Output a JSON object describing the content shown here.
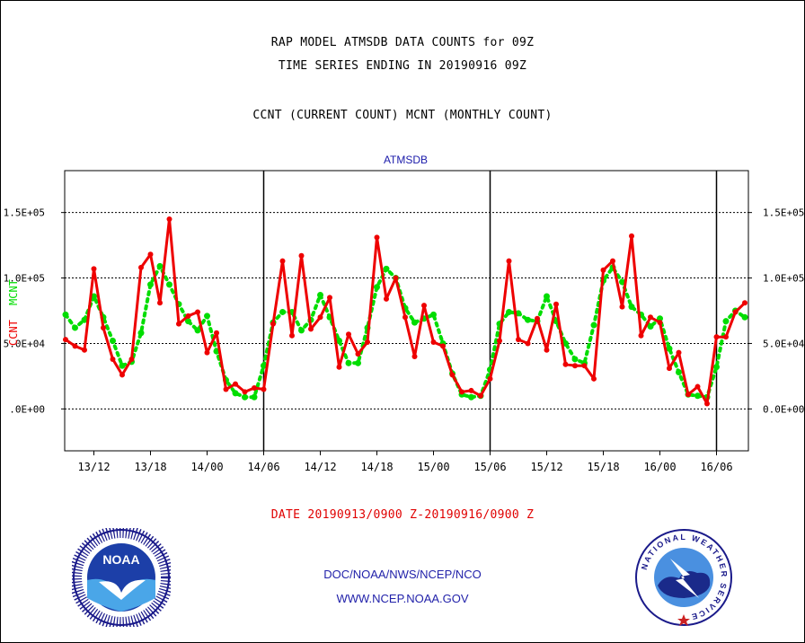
{
  "header": {
    "line1": "RAP MODEL ATMSDB DATA COUNTS for 09Z",
    "line2": "TIME SERIES ENDING IN 20190916 09Z",
    "line3": "CCNT (CURRENT COUNT) MCNT (MONTHLY COUNT)"
  },
  "footer": {
    "date_range": "DATE 20190913/0900 Z-20190916/0900 Z",
    "org": "DOC/NOAA/NWS/NCEP/NCO",
    "url": "WWW.NCEP.NOAA.GOV"
  },
  "logos": {
    "left_text": "NOAA",
    "right_text": "NATIONAL WEATHER SERVICE"
  },
  "colors": {
    "ccnt": "#ee0000",
    "mcnt": "#00dd00",
    "title": "#1a1aaa"
  },
  "chart_data": {
    "type": "line",
    "title": "ATMSDB",
    "left_ylabel_ccnt": "CCNT",
    "left_ylabel_mcnt": "MCNT",
    "x_ticks": [
      "13/12",
      "13/18",
      "14/00",
      "14/06",
      "14/12",
      "14/18",
      "15/00",
      "15/06",
      "15/12",
      "15/18",
      "16/00",
      "16/06"
    ],
    "y_ticks_left": [
      ".0E+00",
      "5.0E+04",
      "1.0E+05",
      "1.5E+05"
    ],
    "y_ticks_right": [
      "0.0E+00",
      "5.0E+04",
      "1.0E+05",
      "1.5E+05"
    ],
    "ylim": [
      -32000,
      182000
    ],
    "x_start": "20190913/0900",
    "x_end": "20190916/0900",
    "day_boundaries": [
      "14/06",
      "15/06",
      "16/06"
    ],
    "grid": true,
    "series": [
      {
        "name": "CCNT",
        "color": "#ee0000",
        "values": [
          53000,
          48000,
          45000,
          107000,
          62000,
          38000,
          26000,
          38000,
          108000,
          118000,
          81000,
          145000,
          65000,
          71000,
          74000,
          43000,
          58000,
          15000,
          19000,
          13000,
          16000,
          15000,
          65000,
          113000,
          56000,
          117000,
          61000,
          70000,
          85000,
          32000,
          57000,
          42000,
          51000,
          131000,
          84000,
          100000,
          70000,
          40000,
          79000,
          51000,
          48000,
          26000,
          13000,
          14000,
          10000,
          23000,
          52000,
          113000,
          53000,
          50000,
          69000,
          45000,
          80000,
          34000,
          33000,
          33000,
          23000,
          106000,
          113000,
          78000,
          132000,
          56000,
          70000,
          66000,
          31000,
          43000,
          11000,
          17000,
          4000,
          55000,
          55000,
          74000,
          81000
        ]
      },
      {
        "name": "MCNT",
        "color": "#00dd00",
        "values": [
          72000,
          62000,
          68000,
          86000,
          70000,
          52000,
          33000,
          36000,
          58000,
          95000,
          109000,
          95000,
          80000,
          67000,
          60000,
          71000,
          44000,
          22000,
          12000,
          9000,
          9000,
          33000,
          66000,
          74000,
          74000,
          60000,
          68000,
          87000,
          70000,
          52000,
          35000,
          35000,
          62000,
          93000,
          107000,
          100000,
          77000,
          66000,
          69000,
          72000,
          50000,
          27000,
          11000,
          9000,
          10000,
          30000,
          65000,
          74000,
          73000,
          68000,
          67000,
          86000,
          67000,
          50000,
          38000,
          35000,
          64000,
          98000,
          108000,
          97000,
          78000,
          72000,
          63000,
          69000,
          46000,
          28000,
          11000,
          10000,
          9000,
          32000,
          67000,
          75000,
          70000
        ]
      }
    ]
  }
}
